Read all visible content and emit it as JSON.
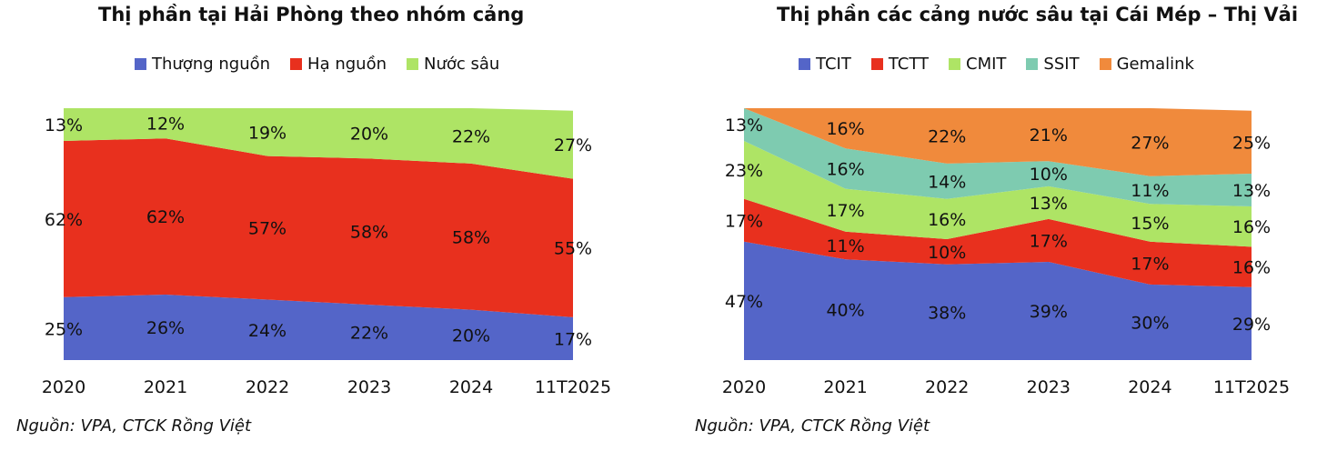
{
  "charts": [
    {
      "id": "left",
      "title": "Thị phần tại Hải Phòng theo nhóm cảng",
      "source": "Nguồn: VPA, CTCK Rồng Việt",
      "legend": [
        {
          "label": "Thượng nguồn",
          "color": "#5465c8"
        },
        {
          "label": "Hạ nguồn",
          "color": "#e8301e"
        },
        {
          "label": "Nước sâu",
          "color": "#aee465"
        }
      ]
    },
    {
      "id": "right",
      "title": "Thị phần các cảng nước sâu tại Cái Mép – Thị Vải",
      "source": "Nguồn: VPA, CTCK Rồng Việt",
      "legend": [
        {
          "label": "TCIT",
          "color": "#5465c8"
        },
        {
          "label": "TCTT",
          "color": "#e8301e"
        },
        {
          "label": "CMIT",
          "color": "#aee465"
        },
        {
          "label": "SSIT",
          "color": "#7ecbb0"
        },
        {
          "label": "Gemalink",
          "color": "#f08a3c"
        }
      ]
    }
  ],
  "chart_data": [
    {
      "type": "area",
      "stacked": true,
      "percent": true,
      "title": "Thị phần tại Hải Phòng theo nhóm cảng",
      "categories": [
        "2020",
        "2021",
        "2022",
        "2023",
        "2024",
        "11T2025"
      ],
      "series": [
        {
          "name": "Thượng nguồn",
          "color": "#5465c8",
          "values": [
            25,
            26,
            24,
            22,
            20,
            17
          ],
          "labels": [
            "25%",
            "26%",
            "24%",
            "22%",
            "20%",
            "17%"
          ]
        },
        {
          "name": "Hạ nguồn",
          "color": "#e8301e",
          "values": [
            62,
            62,
            57,
            58,
            58,
            55
          ],
          "labels": [
            "62%",
            "62%",
            "57%",
            "58%",
            "58%",
            "55%"
          ]
        },
        {
          "name": "Nước sâu",
          "color": "#aee465",
          "values": [
            13,
            12,
            19,
            20,
            22,
            27
          ],
          "labels": [
            "13%",
            "12%",
            "19%",
            "20%",
            "22%",
            "27%"
          ]
        }
      ],
      "ylim": [
        0,
        100
      ],
      "legend_position": "top"
    },
    {
      "type": "area",
      "stacked": true,
      "percent": true,
      "title": "Thị phần các cảng nước sâu tại Cái Mép – Thị Vải",
      "categories": [
        "2020",
        "2021",
        "2022",
        "2023",
        "2024",
        "11T2025"
      ],
      "series": [
        {
          "name": "TCIT",
          "color": "#5465c8",
          "values": [
            47,
            40,
            38,
            39,
            30,
            29
          ],
          "labels": [
            "47%",
            "40%",
            "38%",
            "39%",
            "30%",
            "29%"
          ]
        },
        {
          "name": "TCTT",
          "color": "#e8301e",
          "values": [
            17,
            11,
            10,
            17,
            17,
            16
          ],
          "labels": [
            "17%",
            "11%",
            "10%",
            "17%",
            "17%",
            "16%"
          ]
        },
        {
          "name": "CMIT",
          "color": "#aee465",
          "values": [
            23,
            17,
            16,
            13,
            15,
            16
          ],
          "labels": [
            "23%",
            "17%",
            "16%",
            "13%",
            "15%",
            "16%"
          ]
        },
        {
          "name": "SSIT",
          "color": "#7ecbb0",
          "values": [
            13,
            16,
            14,
            10,
            11,
            13
          ],
          "labels": [
            "13%",
            "16%",
            "14%",
            "10%",
            "11%",
            "13%"
          ]
        },
        {
          "name": "Gemalink",
          "color": "#f08a3c",
          "values": [
            0,
            16,
            22,
            21,
            27,
            25
          ],
          "labels": [
            "",
            "16%",
            "22%",
            "21%",
            "27%",
            "25%"
          ]
        }
      ],
      "ylim": [
        0,
        100
      ],
      "legend_position": "top"
    }
  ]
}
